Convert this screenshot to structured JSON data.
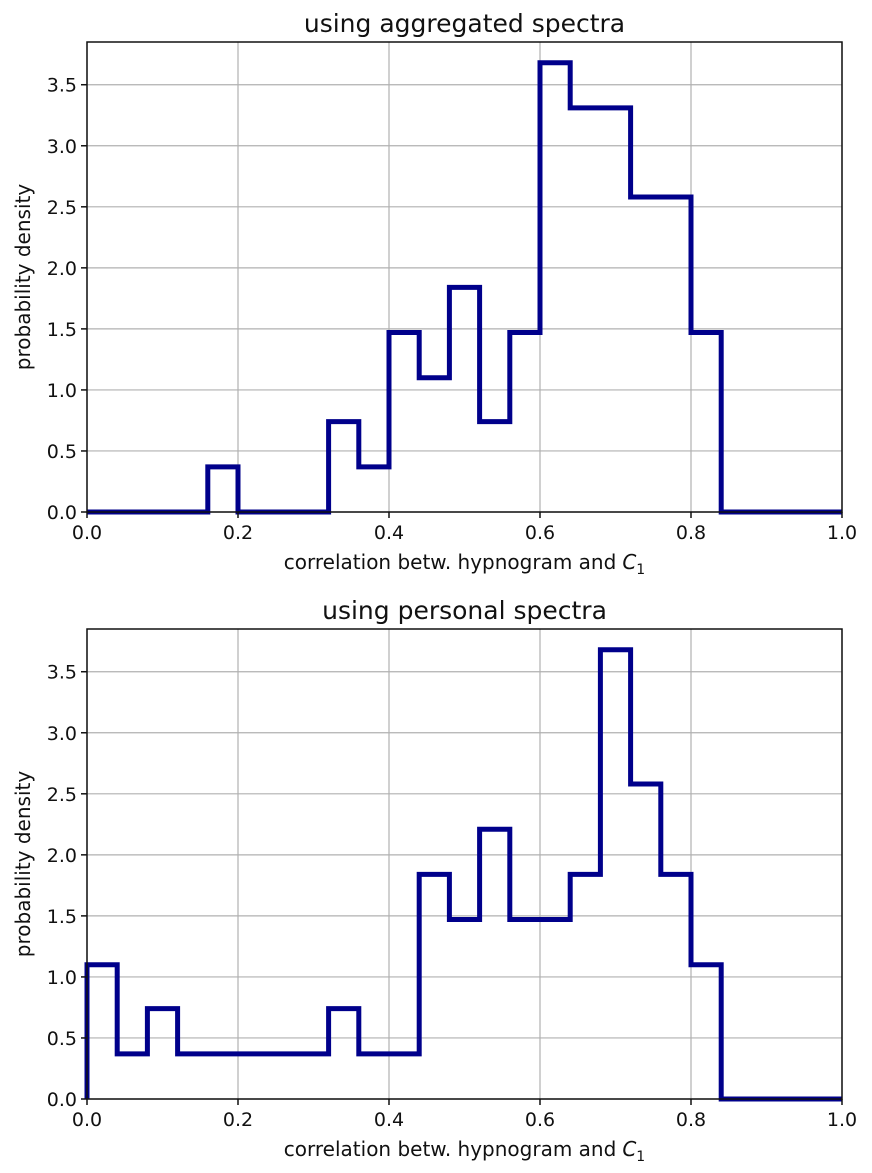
{
  "chart_data": [
    {
      "type": "histogram",
      "title": "using aggregated spectra",
      "xlabel": "correlation betw. hypnogram and",
      "xlabel_symbol": "C",
      "xlabel_subscript": "1",
      "ylabel": "probability density",
      "xlim": [
        0,
        1
      ],
      "ylim": [
        0,
        3.85
      ],
      "xticks": [
        "0.0",
        "0.2",
        "0.4",
        "0.6",
        "0.8",
        "1.0"
      ],
      "yticks": [
        "0.0",
        "0.5",
        "1.0",
        "1.5",
        "2.0",
        "2.5",
        "3.0",
        "3.5"
      ],
      "grid": true,
      "color": "#00008b",
      "bin_edges": [
        0.0,
        0.04,
        0.08,
        0.12,
        0.16,
        0.2,
        0.24,
        0.28,
        0.32,
        0.36,
        0.4,
        0.44,
        0.48,
        0.52,
        0.56,
        0.6,
        0.64,
        0.68,
        0.72,
        0.76,
        0.8,
        0.84,
        0.88,
        0.92,
        0.96,
        1.0
      ],
      "values": [
        0,
        0,
        0,
        0,
        0.37,
        0,
        0,
        0,
        0.74,
        0.37,
        1.47,
        1.1,
        1.84,
        0.74,
        1.47,
        3.68,
        3.31,
        3.31,
        2.58,
        2.58,
        1.47,
        0,
        0,
        0,
        0
      ]
    },
    {
      "type": "histogram",
      "title": "using personal spectra",
      "xlabel": "correlation betw. hypnogram and",
      "xlabel_symbol": "C",
      "xlabel_subscript": "1",
      "ylabel": "probability density",
      "xlim": [
        0,
        1
      ],
      "ylim": [
        0,
        3.85
      ],
      "xticks": [
        "0.0",
        "0.2",
        "0.4",
        "0.6",
        "0.8",
        "1.0"
      ],
      "yticks": [
        "0.0",
        "0.5",
        "1.0",
        "1.5",
        "2.0",
        "2.5",
        "3.0",
        "3.5"
      ],
      "grid": true,
      "color": "#00008b",
      "bin_edges": [
        0.0,
        0.04,
        0.08,
        0.12,
        0.16,
        0.2,
        0.24,
        0.28,
        0.32,
        0.36,
        0.4,
        0.44,
        0.48,
        0.52,
        0.56,
        0.6,
        0.64,
        0.68,
        0.72,
        0.76,
        0.8,
        0.84,
        0.88,
        0.92,
        0.96,
        1.0
      ],
      "values": [
        1.1,
        0.37,
        0.74,
        0.37,
        0.37,
        0.37,
        0.37,
        0.37,
        0.74,
        0.37,
        0.37,
        1.84,
        1.47,
        2.21,
        1.47,
        1.47,
        1.84,
        3.68,
        2.58,
        1.84,
        1.1,
        0,
        0,
        0,
        0
      ]
    }
  ]
}
